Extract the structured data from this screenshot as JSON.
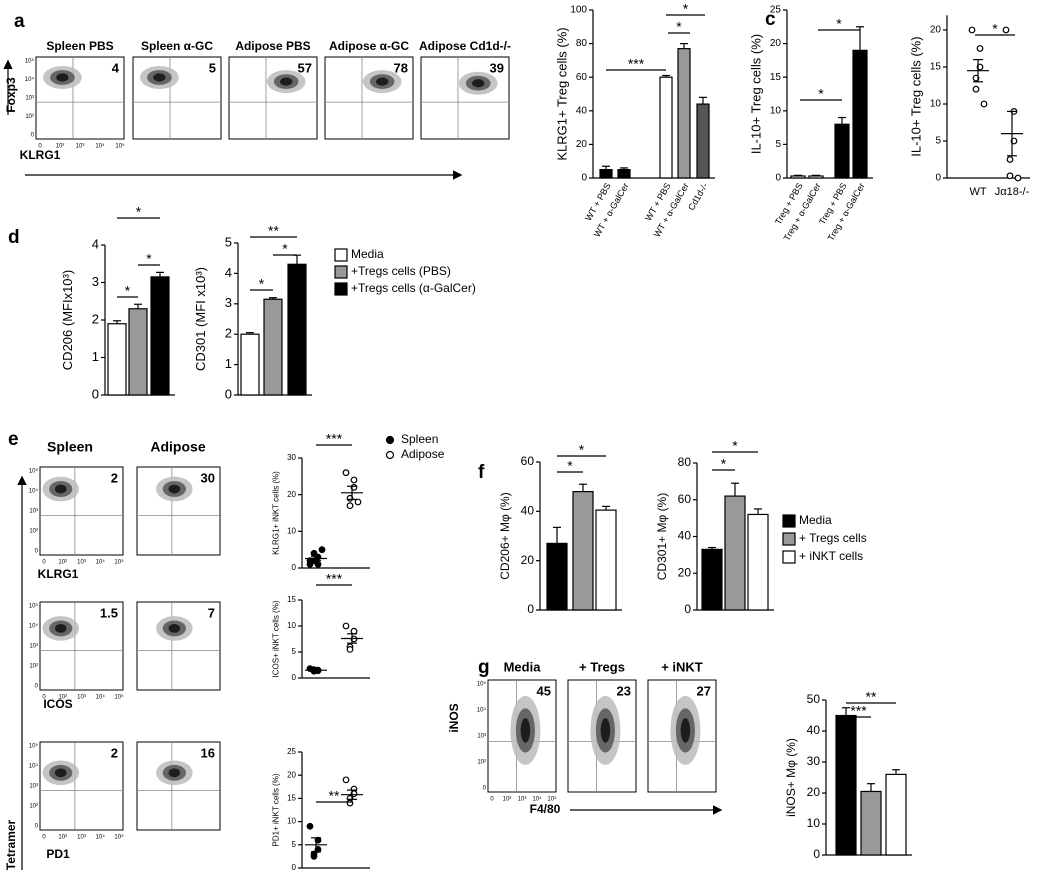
{
  "panel_labels": [
    "a",
    "c",
    "d",
    "e",
    "f",
    "g"
  ],
  "flow_ticks": [
    "0",
    "10²",
    "10³",
    "10⁴",
    "10⁵"
  ],
  "flow": [
    {
      "titles": [
        "Spleen PBS",
        "Spleen α-GC",
        "Adipose PBS",
        "Adipose α-GC",
        "Adipose Cd1d-/-"
      ],
      "numbers": [
        4,
        5,
        57,
        78,
        39
      ],
      "ylabel": "Foxp3",
      "xlabels": [
        "KLRG1"
      ]
    },
    {
      "titles": [
        "Spleen",
        "Adipose"
      ],
      "numbers": [
        2,
        30,
        1.5,
        7,
        2,
        16
      ],
      "ylabel": "Tetramer",
      "xlabels": [
        "KLRG1",
        "ICOS",
        "PD1"
      ]
    },
    {
      "titles": [
        "Media",
        "+ Tregs",
        "+ iNKT"
      ],
      "numbers": [
        45,
        23,
        27
      ],
      "ylabel": "iNOS",
      "xlabels": [
        "F4/80"
      ]
    }
  ],
  "legends": [
    {
      "items": [
        {
          "name": "Media",
          "color": "#ffffff"
        },
        {
          "name": "+Tregs cells (PBS)",
          "color": "#999999"
        },
        {
          "name": "+Tregs cells (α-GalCer)",
          "color": "#000000"
        }
      ]
    },
    {
      "items": [
        {
          "name": "Spleen",
          "color": "#000000"
        },
        {
          "name": "Adipose",
          "color": "#ffffff"
        }
      ]
    },
    {
      "items": [
        {
          "name": "Media",
          "color": "#000000"
        },
        {
          "name": "+ Tregs cells",
          "color": "#999999"
        },
        {
          "name": "+ iNKT cells",
          "color": "#ffffff"
        }
      ]
    }
  ],
  "chart_data": [
    {
      "type": "bar",
      "ylabel": "KLRG1+ Treg cells (%)",
      "categories": [
        "WT + PBS",
        "WT + α-GalCer",
        "WT + PBS",
        "WT + α-GalCer",
        "Cd1d-/-"
      ],
      "values": [
        5,
        5,
        60,
        77,
        44
      ],
      "errors": [
        2,
        1,
        1,
        3,
        4
      ],
      "colors": [
        "#000000",
        "#000000",
        "#ffffff",
        "#999999",
        "#555555"
      ],
      "ylim": [
        0,
        100
      ],
      "yticks": [
        0,
        20,
        40,
        60,
        80,
        100
      ],
      "annotations": [
        "***",
        "*",
        "*"
      ]
    },
    {
      "type": "bar",
      "ylabel": "IL-10+ Treg cells (%)",
      "categories": [
        "Treg + PBS",
        "Treg + α-GalCer",
        "Treg + PBS",
        "Treg + α-GalCer"
      ],
      "values": [
        0.3,
        0.3,
        8,
        19
      ],
      "errors": [
        0.1,
        0.1,
        1,
        3.5
      ],
      "colors": [
        "#ffffff",
        "#ffffff",
        "#000000",
        "#000000"
      ],
      "ylim": [
        0,
        25
      ],
      "yticks": [
        0,
        5,
        10,
        15,
        20,
        25
      ],
      "annotations": [
        "*",
        "*"
      ]
    },
    {
      "type": "dot",
      "ylabel": "IL-10+ Treg cells (%)",
      "categories": [
        "WT",
        "Jα18-/-"
      ],
      "groups": [
        {
          "values": [
            20,
            17.5,
            15,
            13.5,
            12,
            10
          ],
          "mean": 14.5,
          "sem": 1.5,
          "color": "#ffffff"
        },
        {
          "values": [
            20,
            9,
            5,
            2.5,
            0.3,
            0
          ],
          "mean": 6,
          "sem": 3,
          "color": "#ffffff"
        }
      ],
      "ylim": [
        0,
        22
      ],
      "yticks": [
        0,
        5,
        10,
        15,
        20
      ],
      "annotations": [
        "*"
      ]
    },
    {
      "type": "bar",
      "ylabel": "CD206 (MFIx10³)",
      "values": [
        1.9,
        2.3,
        3.15
      ],
      "errors": [
        0.08,
        0.12,
        0.12
      ],
      "colors": [
        "#ffffff",
        "#999999",
        "#000000"
      ],
      "ylim": [
        0,
        4
      ],
      "yticks": [
        0,
        1,
        2,
        3,
        4
      ],
      "annotations": [
        "*",
        "*",
        "*"
      ]
    },
    {
      "type": "bar",
      "ylabel": "CD301 (MFI x10³)",
      "values": [
        2,
        3.15,
        4.3
      ],
      "errors": [
        0.05,
        0.05,
        0.3
      ],
      "colors": [
        "#ffffff",
        "#999999",
        "#000000"
      ],
      "ylim": [
        0,
        5
      ],
      "yticks": [
        0,
        1,
        2,
        3,
        4,
        5
      ],
      "annotations": [
        "**",
        "*",
        "*"
      ]
    },
    {
      "type": "dot",
      "ylabel": "KLRG1+ iNKT cells (%)",
      "groups": [
        {
          "values": [
            2,
            3,
            1,
            4,
            2,
            5,
            1
          ],
          "mean": 2.6,
          "sem": 0.6,
          "color": "#000000"
        },
        {
          "values": [
            26,
            24,
            22,
            19,
            17,
            18
          ],
          "mean": 20.5,
          "sem": 1.8,
          "color": "#ffffff"
        }
      ],
      "ylim": [
        0,
        30
      ],
      "yticks": [
        0,
        10,
        20,
        30
      ],
      "annotations": [
        "***"
      ]
    },
    {
      "type": "dot",
      "ylabel": "ICOS+ iNKT cells (%)",
      "groups": [
        {
          "values": [
            1.8,
            1.5,
            1.4,
            1.3,
            1.6
          ],
          "mean": 1.5,
          "sem": 0.1,
          "color": "#000000"
        },
        {
          "values": [
            10,
            9,
            7.5,
            6,
            5.5
          ],
          "mean": 7.6,
          "sem": 0.9,
          "color": "#ffffff"
        }
      ],
      "ylim": [
        0,
        15
      ],
      "yticks": [
        0,
        5,
        10,
        15
      ],
      "annotations": [
        "***"
      ]
    },
    {
      "type": "dot",
      "ylabel": "PD1+ iNKT cells (%)",
      "groups": [
        {
          "values": [
            9,
            6,
            4,
            2.5,
            3
          ],
          "mean": 5,
          "sem": 1.5,
          "color": "#000000"
        },
        {
          "values": [
            19,
            17,
            16,
            15,
            14
          ],
          "mean": 15.8,
          "sem": 1,
          "color": "#ffffff"
        }
      ],
      "ylim": [
        0,
        25
      ],
      "yticks": [
        0,
        5,
        10,
        15,
        20,
        25
      ],
      "annotations": [
        "**"
      ]
    },
    {
      "type": "bar",
      "ylabel": "CD206+ Mφ (%)",
      "values": [
        27,
        48,
        40.5
      ],
      "errors": [
        6.5,
        3,
        1.5
      ],
      "colors": [
        "#000000",
        "#999999",
        "#ffffff"
      ],
      "ylim": [
        0,
        60
      ],
      "yticks": [
        0,
        20,
        40,
        60
      ],
      "annotations": [
        "*",
        "*"
      ]
    },
    {
      "type": "bar",
      "ylabel": "CD301+ Mφ (%)",
      "values": [
        33,
        62,
        52
      ],
      "errors": [
        1,
        7,
        3
      ],
      "colors": [
        "#000000",
        "#999999",
        "#ffffff"
      ],
      "ylim": [
        0,
        80
      ],
      "yticks": [
        0,
        20,
        40,
        60,
        80
      ],
      "annotations": [
        "*",
        "*"
      ]
    },
    {
      "type": "bar",
      "ylabel": "iNOS+ Mφ (%)",
      "values": [
        45,
        20.5,
        26
      ],
      "errors": [
        2.5,
        2.5,
        1.5
      ],
      "colors": [
        "#000000",
        "#999999",
        "#ffffff"
      ],
      "ylim": [
        0,
        50
      ],
      "yticks": [
        0,
        10,
        20,
        30,
        40,
        50
      ],
      "annotations": [
        "***",
        "**"
      ]
    }
  ]
}
